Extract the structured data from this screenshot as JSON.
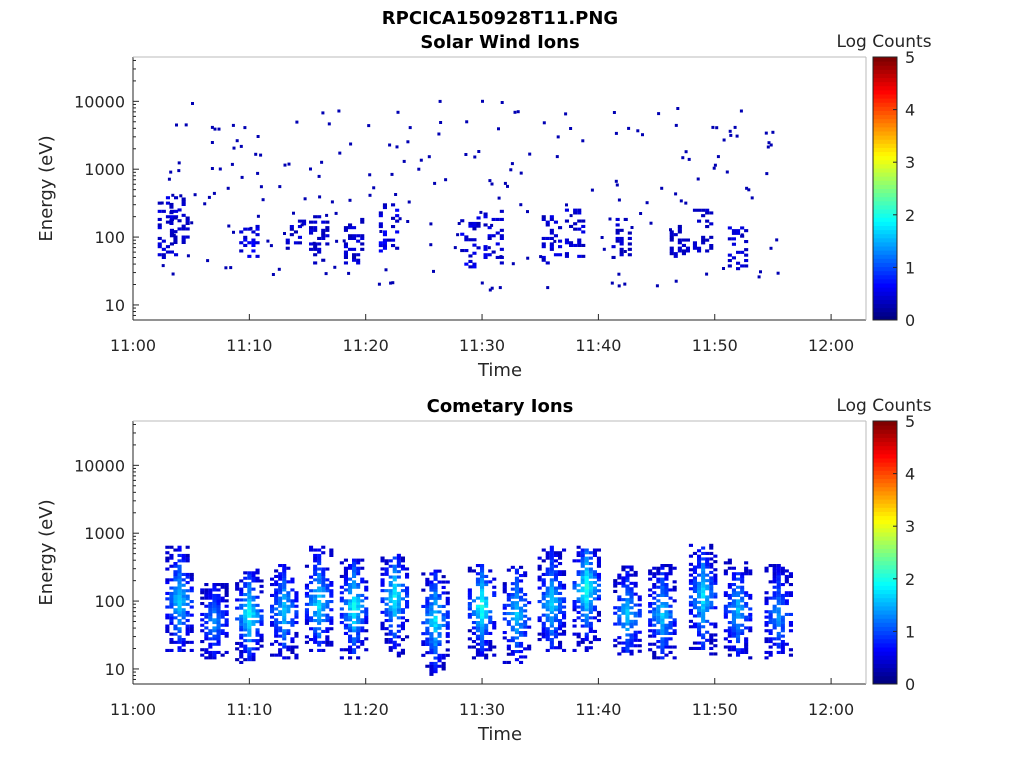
{
  "figure_title": "RPCICA150928T11.PNG",
  "colorbar": {
    "label": "Log Counts",
    "ticks": [
      "0",
      "1",
      "2",
      "3",
      "4",
      "5"
    ],
    "range": [
      0,
      5
    ],
    "colormap": "jet"
  },
  "chart_data": [
    {
      "type": "heatmap",
      "title": "Solar Wind Ions",
      "xlabel": "Time",
      "ylabel": "Energy (eV)",
      "xticks": [
        "11:00",
        "11:10",
        "11:20",
        "11:30",
        "11:40",
        "11:50",
        "12:00"
      ],
      "xlim_minutes_after_11": [
        0,
        63
      ],
      "yscale": "log",
      "yticks": [
        "10",
        "100",
        "1000",
        "10000"
      ],
      "ylim": [
        6,
        45000
      ],
      "zlim": [
        0,
        5
      ],
      "grid": false,
      "time_range": [
        "11:02",
        "11:56"
      ],
      "clusters": [
        {
          "t": "11:03",
          "emin": 40,
          "emax": 400,
          "level": 0.3
        },
        {
          "t": "11:04",
          "emin": 80,
          "emax": 350,
          "level": 0.2
        },
        {
          "t": "11:10",
          "emin": 50,
          "emax": 150,
          "level": 0.45
        },
        {
          "t": "11:14",
          "emin": 60,
          "emax": 180,
          "level": 0.3
        },
        {
          "t": "11:16",
          "emin": 40,
          "emax": 200,
          "level": 0.25
        },
        {
          "t": "11:19",
          "emin": 40,
          "emax": 180,
          "level": 0.25
        },
        {
          "t": "11:22",
          "emin": 60,
          "emax": 300,
          "level": 0.45
        },
        {
          "t": "11:29",
          "emin": 35,
          "emax": 200,
          "level": 0.4
        },
        {
          "t": "11:31",
          "emin": 40,
          "emax": 250,
          "level": 0.3
        },
        {
          "t": "11:36",
          "emin": 40,
          "emax": 200,
          "level": 0.3
        },
        {
          "t": "11:38",
          "emin": 50,
          "emax": 250,
          "level": 0.3
        },
        {
          "t": "11:42",
          "emin": 40,
          "emax": 180,
          "level": 0.2
        },
        {
          "t": "11:47",
          "emin": 50,
          "emax": 150,
          "level": 0.2
        },
        {
          "t": "11:49",
          "emin": 60,
          "emax": 250,
          "level": 0.2
        },
        {
          "t": "11:52",
          "emin": 30,
          "emax": 150,
          "level": 0.25
        }
      ]
    },
    {
      "type": "heatmap",
      "title": "Cometary Ions",
      "xlabel": "Time",
      "ylabel": "Energy (eV)",
      "xticks": [
        "11:00",
        "11:10",
        "11:20",
        "11:30",
        "11:40",
        "11:50",
        "12:00"
      ],
      "xlim_minutes_after_11": [
        0,
        63
      ],
      "yscale": "log",
      "yticks": [
        "10",
        "100",
        "1000",
        "10000"
      ],
      "ylim": [
        6,
        45000
      ],
      "zlim": [
        0,
        5
      ],
      "grid": false,
      "time_range": [
        "11:02.5",
        "11:56.5"
      ],
      "clusters": [
        {
          "t": "11:04",
          "emin": 18,
          "emax": 650,
          "peak_e": 100,
          "level": 1.3
        },
        {
          "t": "11:07",
          "emin": 14,
          "emax": 180,
          "peak_e": 50,
          "level": 1.0
        },
        {
          "t": "11:10",
          "emin": 12,
          "emax": 280,
          "peak_e": 60,
          "level": 1.6
        },
        {
          "t": "11:13",
          "emin": 14,
          "emax": 330,
          "peak_e": 70,
          "level": 1.3
        },
        {
          "t": "11:16",
          "emin": 18,
          "emax": 650,
          "peak_e": 90,
          "level": 1.4
        },
        {
          "t": "11:19",
          "emin": 14,
          "emax": 420,
          "peak_e": 80,
          "level": 1.6
        },
        {
          "t": "11:22.5",
          "emin": 15,
          "emax": 480,
          "peak_e": 110,
          "level": 1.5
        },
        {
          "t": "11:26",
          "emin": 8,
          "emax": 280,
          "peak_e": 50,
          "level": 1.4
        },
        {
          "t": "11:30",
          "emin": 14,
          "emax": 330,
          "peak_e": 80,
          "level": 1.7
        },
        {
          "t": "11:33",
          "emin": 12,
          "emax": 330,
          "peak_e": 60,
          "level": 1.3
        },
        {
          "t": "11:36",
          "emin": 18,
          "emax": 650,
          "peak_e": 90,
          "level": 1.3
        },
        {
          "t": "11:39",
          "emin": 18,
          "emax": 600,
          "peak_e": 150,
          "level": 1.7
        },
        {
          "t": "11:42.5",
          "emin": 16,
          "emax": 330,
          "peak_e": 60,
          "level": 1.3
        },
        {
          "t": "11:45.5",
          "emin": 14,
          "emax": 330,
          "peak_e": 60,
          "level": 1.3
        },
        {
          "t": "11:49",
          "emin": 16,
          "emax": 650,
          "peak_e": 110,
          "level": 1.4
        },
        {
          "t": "11:52",
          "emin": 14,
          "emax": 420,
          "peak_e": 70,
          "level": 1.2
        },
        {
          "t": "11:55.5",
          "emin": 14,
          "emax": 330,
          "peak_e": 60,
          "level": 1.0
        }
      ]
    }
  ]
}
